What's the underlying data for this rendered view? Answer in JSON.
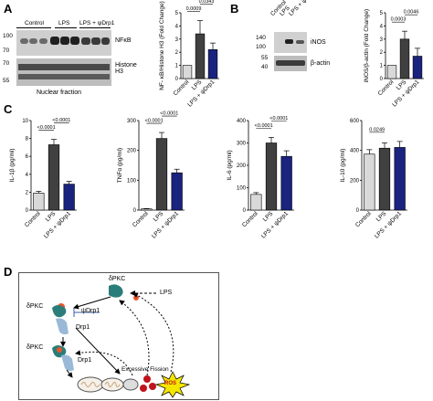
{
  "panel_labels": [
    "A",
    "B",
    "C",
    "D"
  ],
  "panelA": {
    "lane_labels": [
      "Control",
      "LPS",
      "LPS + ψDrp1"
    ],
    "mw": [
      "100",
      "70",
      "70",
      "55"
    ],
    "band_labels": [
      "NFκB",
      "Histone H3"
    ],
    "footer": "Nuclear fraction"
  },
  "panelB": {
    "lane_labels": [
      "Control",
      "LPS",
      "LPS + ψDrp1"
    ],
    "mw": [
      "140",
      "100",
      "55",
      "40"
    ],
    "band_labels": [
      "iNOS",
      "β-actin"
    ]
  },
  "colors": {
    "control": "#d9d9d9",
    "lps": "#404040",
    "drp1": "#1a237e"
  },
  "chart_data": [
    {
      "type": "bar",
      "id": "A-bar",
      "categories": [
        "Control",
        "LPS",
        "LPS + ψDrp1"
      ],
      "values": [
        1.0,
        3.4,
        2.2
      ],
      "errors": [
        0.0,
        1.0,
        0.5
      ],
      "ylabel": "NF- κB/Histone H3 (Fold Change)",
      "ylim": [
        0,
        5
      ],
      "yticks": [
        "0",
        "1",
        "2",
        "3",
        "4",
        "5"
      ],
      "pvalues": [
        "0.0009",
        "0.0343"
      ]
    },
    {
      "type": "bar",
      "id": "B-bar",
      "categories": [
        "Control",
        "LPS",
        "LPS + ψDrp1"
      ],
      "values": [
        1.0,
        3.0,
        1.7
      ],
      "errors": [
        0.0,
        0.6,
        0.6
      ],
      "ylabel": "iNOS/β-actin (Fold Change)",
      "ylim": [
        0,
        5
      ],
      "yticks": [
        "0",
        "1",
        "2",
        "3",
        "4",
        "5"
      ],
      "pvalues": [
        "0.0003",
        "0.0046"
      ]
    },
    {
      "type": "bar",
      "id": "C1",
      "categories": [
        "Control",
        "LPS",
        "LPS + ψDrp1"
      ],
      "values": [
        1.9,
        7.3,
        2.9
      ],
      "errors": [
        0.2,
        0.6,
        0.3
      ],
      "ylabel": "IL-1β (pg/ml)",
      "ylim": [
        0,
        10
      ],
      "yticks": [
        "0",
        "2",
        "4",
        "6",
        "8",
        "10"
      ],
      "pvalues": [
        "<0.0001",
        "<0.0001"
      ]
    },
    {
      "type": "bar",
      "id": "C2",
      "categories": [
        "Control",
        "LPS",
        "LPS + ψDrp1"
      ],
      "values": [
        4,
        240,
        125
      ],
      "errors": [
        1,
        20,
        12
      ],
      "ylabel": "TNFα (pg/ml)",
      "ylim": [
        0,
        300
      ],
      "yticks": [
        "0",
        "100",
        "200",
        "300"
      ],
      "pvalues": [
        "<0.0001",
        "<0.0001"
      ]
    },
    {
      "type": "bar",
      "id": "C3",
      "categories": [
        "Control",
        "LPS",
        "LPS + ψDrp1"
      ],
      "values": [
        70,
        300,
        240
      ],
      "errors": [
        8,
        25,
        25
      ],
      "ylabel": "IL-6 (pg/ml)",
      "ylim": [
        0,
        400
      ],
      "yticks": [
        "0",
        "100",
        "200",
        "300",
        "400"
      ],
      "pvalues": [
        "<0.0001",
        "<0.0001"
      ]
    },
    {
      "type": "bar",
      "id": "C4",
      "categories": [
        "Control",
        "LPS",
        "LPS + ψDrp1"
      ],
      "values": [
        375,
        415,
        420
      ],
      "errors": [
        30,
        35,
        40
      ],
      "ylabel": "IL-10 (pg/ml)",
      "ylim": [
        0,
        600
      ],
      "yticks": [
        "0",
        "200",
        "400",
        "600"
      ],
      "pvalues": [
        "0.0249"
      ]
    }
  ],
  "panelD": {
    "labels": {
      "dpkc_top": "δPKC",
      "lps": "LPS",
      "dpkc_mid": "δPKC",
      "psidrp1": "ψDrp1",
      "drp1_a": "Drp1",
      "dpkc_low": "δPKC",
      "drp1_b": "Drp1",
      "fission": "Excessive Fission",
      "ros": "ROS"
    }
  }
}
